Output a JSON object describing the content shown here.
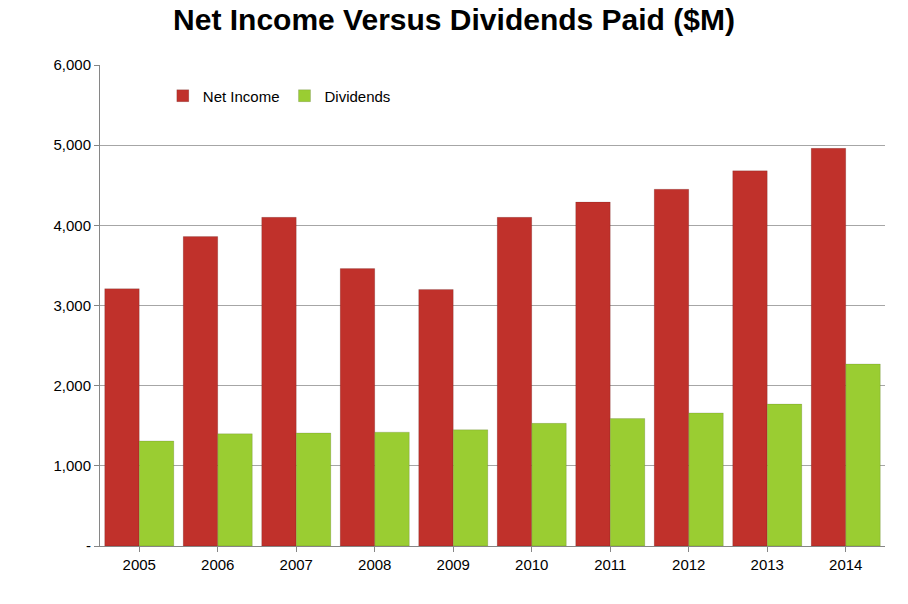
{
  "chart_data": {
    "type": "bar",
    "title": "Net Income Versus Dividends Paid ($M)",
    "categories": [
      "2005",
      "2006",
      "2007",
      "2008",
      "2009",
      "2010",
      "2011",
      "2012",
      "2013",
      "2014"
    ],
    "series": [
      {
        "name": "Net Income",
        "color": "#c0312b",
        "values": [
          3210,
          3860,
          4100,
          3460,
          3200,
          4100,
          4290,
          4450,
          4680,
          4960
        ]
      },
      {
        "name": "Dividends",
        "color": "#9acd32",
        "values": [
          1310,
          1400,
          1410,
          1420,
          1450,
          1530,
          1590,
          1660,
          1770,
          2270
        ]
      }
    ],
    "ylim": [
      0,
      6000
    ],
    "yticks": [
      {
        "value": 0,
        "label": "-"
      },
      {
        "value": 1000,
        "label": "1,000"
      },
      {
        "value": 2000,
        "label": "2,000"
      },
      {
        "value": 3000,
        "label": "3,000"
      },
      {
        "value": 4000,
        "label": "4,000"
      },
      {
        "value": 5000,
        "label": "5,000"
      },
      {
        "value": 6000,
        "label": "6,000"
      }
    ],
    "grid": true,
    "legend": "upper left"
  }
}
